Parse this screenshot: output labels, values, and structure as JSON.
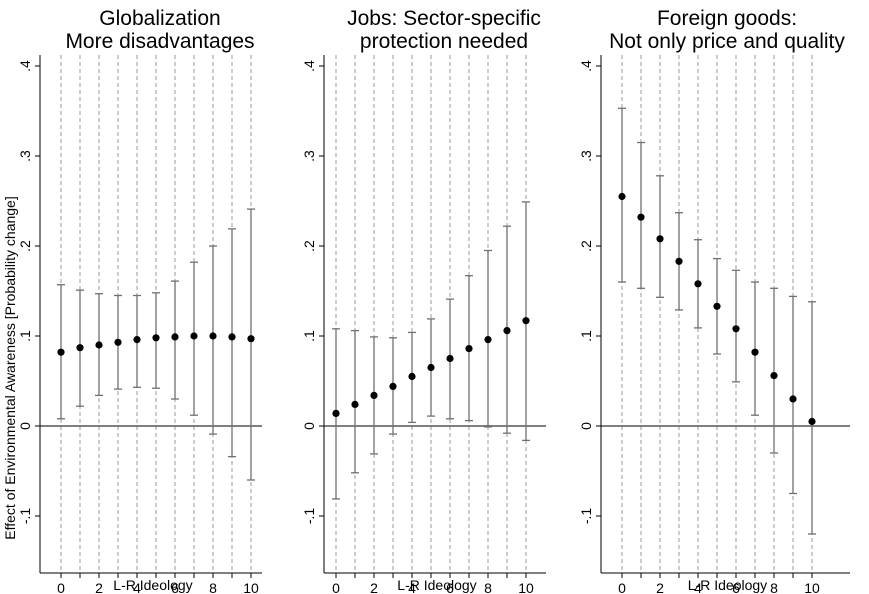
{
  "figure": {
    "ylabel": "Effect of Environmental Awareness [Probability change]"
  },
  "chart_data": [
    {
      "type": "scatter",
      "title": [
        "Globalization",
        "More disadvantages"
      ],
      "xlabel": "L-R Ideology",
      "x": [
        0,
        1,
        2,
        3,
        4,
        5,
        6,
        7,
        8,
        9,
        10
      ],
      "y": [
        0.082,
        0.087,
        0.09,
        0.093,
        0.096,
        0.098,
        0.099,
        0.1,
        0.1,
        0.099,
        0.097
      ],
      "ci_low": [
        0.008,
        0.022,
        0.034,
        0.041,
        0.043,
        0.042,
        0.03,
        0.012,
        -0.009,
        -0.034,
        -0.06
      ],
      "ci_high": [
        0.157,
        0.151,
        0.147,
        0.145,
        0.145,
        0.148,
        0.161,
        0.182,
        0.2,
        0.219,
        0.241
      ],
      "xticks": [
        "0",
        "2",
        "4",
        "6",
        "8",
        "10"
      ],
      "yticks": [
        "-.1",
        "0",
        ".1",
        ".2",
        ".3",
        ".4"
      ],
      "xlim": [
        -0.6,
        10.6
      ],
      "ylim": [
        -0.13,
        0.42
      ],
      "reference_line": 0,
      "vertical_gridlines": "dashed at each integer"
    },
    {
      "type": "scatter",
      "title": [
        "Jobs: Sector-specific",
        "protection needed"
      ],
      "xlabel": "L-R Ideology",
      "x": [
        0,
        1,
        2,
        3,
        4,
        5,
        6,
        7,
        8,
        9,
        10
      ],
      "y": [
        0.014,
        0.024,
        0.034,
        0.044,
        0.055,
        0.065,
        0.075,
        0.086,
        0.096,
        0.106,
        0.117
      ],
      "ci_low": [
        -0.081,
        -0.052,
        -0.031,
        -0.009,
        0.004,
        0.011,
        0.008,
        0.006,
        -0.001,
        -0.008,
        -0.016
      ],
      "ci_high": [
        0.108,
        0.106,
        0.099,
        0.098,
        0.104,
        0.119,
        0.141,
        0.167,
        0.195,
        0.222,
        0.249
      ],
      "xticks": [
        "0",
        "2",
        "4",
        "6",
        "8",
        "10"
      ],
      "yticks": [
        "-.1",
        "0",
        ".1",
        ".2",
        ".3",
        ".4"
      ],
      "xlim": [
        -0.6,
        10.6
      ],
      "ylim": [
        -0.13,
        0.42
      ],
      "reference_line": 0,
      "vertical_gridlines": "dashed at each integer"
    },
    {
      "type": "scatter",
      "title": [
        "Foreign goods:",
        "Not only price and quality"
      ],
      "xlabel": "L-R Ideology",
      "x": [
        0,
        1,
        2,
        3,
        4,
        5,
        6,
        7,
        8,
        9,
        10
      ],
      "y": [
        0.255,
        0.232,
        0.208,
        0.183,
        0.158,
        0.133,
        0.108,
        0.082,
        0.056,
        0.03,
        0.005
      ],
      "ci_low": [
        0.16,
        0.153,
        0.143,
        0.129,
        0.109,
        0.08,
        0.049,
        0.012,
        -0.03,
        -0.075,
        -0.12
      ],
      "ci_high": [
        0.353,
        0.315,
        0.278,
        0.237,
        0.207,
        0.186,
        0.173,
        0.16,
        0.153,
        0.144,
        0.138
      ],
      "xticks": [
        "0",
        "2",
        "4",
        "6",
        "8",
        "10"
      ],
      "yticks": [
        "-.1",
        "0",
        ".1",
        ".2",
        ".3",
        ".4"
      ],
      "xlim": [
        -0.6,
        10.6
      ],
      "ylim": [
        -0.13,
        0.42
      ],
      "reference_line": 0,
      "vertical_gridlines": "dashed at each integer"
    }
  ],
  "colors": {
    "marker": "#000000",
    "ci": "#707070",
    "grid": "#9a9a9a",
    "zero_line": "#555555",
    "axis": "#000000"
  }
}
